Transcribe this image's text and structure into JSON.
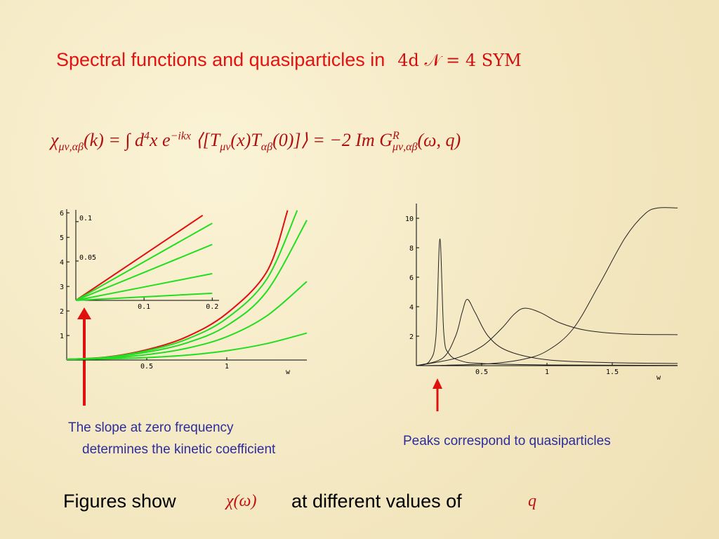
{
  "title": {
    "text": "Spectral functions and quasiparticles in",
    "math": "4d  𝒩 = 4  SYM"
  },
  "formula": [
    "χ",
    "μν,αβ",
    "(k) = ∫ d",
    "4",
    "x e",
    "−ikx",
    " ⟨[T",
    "μν",
    "(x)T",
    "αβ",
    "(0)]⟩ = −2 Im G",
    "R",
    "μν,αβ",
    "(ω, q)"
  ],
  "captions": {
    "left": [
      "The slope at zero frequency",
      "determines the kinetic coefficient"
    ],
    "right": "Peaks correspond to quasiparticles"
  },
  "footer": [
    "Figures show",
    "χ(ω)",
    "at different values of",
    "q"
  ],
  "chart_data": [
    {
      "type": "line",
      "x_label": "w",
      "xlim": [
        0,
        1.5
      ],
      "ylim": [
        0,
        6.15
      ],
      "xticks": [
        0.5,
        1
      ],
      "yticks": [
        1,
        2,
        3,
        4,
        5,
        6
      ],
      "series": [
        {
          "color": "#e01010",
          "x": [
            0,
            0.25,
            0.5,
            0.75,
            1,
            1.25,
            1.38
          ],
          "values": [
            0.03,
            0.12,
            0.42,
            0.95,
            1.9,
            3.6,
            6.1
          ]
        },
        {
          "color": "#22dd22",
          "x": [
            0,
            0.25,
            0.5,
            0.75,
            1,
            1.25,
            1.44
          ],
          "values": [
            0.03,
            0.11,
            0.38,
            0.85,
            1.7,
            3.3,
            6.1
          ]
        },
        {
          "color": "#22dd22",
          "x": [
            0,
            0.25,
            0.5,
            0.75,
            1,
            1.25,
            1.5
          ],
          "values": [
            0.03,
            0.1,
            0.32,
            0.7,
            1.4,
            2.8,
            5.7
          ]
        },
        {
          "color": "#22dd22",
          "x": [
            0,
            0.25,
            0.5,
            0.75,
            1,
            1.25,
            1.5
          ],
          "values": [
            0.03,
            0.08,
            0.22,
            0.48,
            0.95,
            1.8,
            3.2
          ]
        },
        {
          "color": "#22dd22",
          "x": [
            0,
            0.25,
            0.5,
            0.75,
            1,
            1.25,
            1.5
          ],
          "values": [
            0.03,
            0.05,
            0.1,
            0.2,
            0.38,
            0.67,
            1.1
          ]
        }
      ]
    },
    {
      "type": "line",
      "xlim": [
        0,
        0.21
      ],
      "ylim": [
        0,
        0.115
      ],
      "xticks": [
        0.1,
        0.2
      ],
      "yticks": [
        0.05,
        0.1
      ],
      "series": [
        {
          "color": "#e01010",
          "x": [
            0,
            0.186
          ],
          "values": [
            0,
            0.108
          ]
        },
        {
          "color": "#22dd22",
          "x": [
            0,
            0.2
          ],
          "values": [
            0,
            0.098
          ]
        },
        {
          "color": "#22dd22",
          "x": [
            0,
            0.2
          ],
          "values": [
            0,
            0.071
          ]
        },
        {
          "color": "#22dd22",
          "x": [
            0,
            0.2
          ],
          "values": [
            0,
            0.034
          ]
        },
        {
          "color": "#22dd22",
          "x": [
            0,
            0.2
          ],
          "values": [
            0,
            0.009
          ]
        }
      ]
    },
    {
      "type": "line",
      "x_label": "w",
      "xlim": [
        0,
        2
      ],
      "ylim": [
        0,
        11
      ],
      "xticks": [
        0.5,
        1,
        1.5
      ],
      "yticks": [
        2,
        4,
        6,
        8,
        10
      ],
      "series": [
        {
          "color": "#222222",
          "x": [
            0,
            0.1,
            0.15,
            0.18,
            0.21,
            0.25,
            0.35,
            0.5,
            1,
            2
          ],
          "values": [
            0,
            0.3,
            2,
            8.6,
            2.2,
            0.8,
            0.3,
            0.15,
            0.05,
            0.02
          ]
        },
        {
          "color": "#222222",
          "x": [
            0,
            0.2,
            0.3,
            0.35,
            0.39,
            0.45,
            0.55,
            0.7,
            1,
            1.5,
            2
          ],
          "values": [
            0,
            0.5,
            2,
            3.6,
            4.5,
            3.6,
            2,
            1,
            0.4,
            0.2,
            0.15
          ]
        },
        {
          "color": "#222222",
          "x": [
            0,
            0.3,
            0.5,
            0.65,
            0.75,
            0.83,
            0.95,
            1.1,
            1.3,
            1.6,
            2
          ],
          "values": [
            0,
            0.5,
            1.3,
            2.5,
            3.5,
            3.9,
            3.6,
            2.9,
            2.4,
            2.15,
            2.1
          ]
        },
        {
          "color": "#222222",
          "x": [
            0,
            0.5,
            0.8,
            1,
            1.2,
            1.4,
            1.6,
            1.75,
            1.85,
            2
          ],
          "values": [
            0,
            0.1,
            0.4,
            1,
            2.5,
            5.5,
            8.7,
            10.3,
            10.7,
            10.7
          ]
        }
      ]
    }
  ]
}
